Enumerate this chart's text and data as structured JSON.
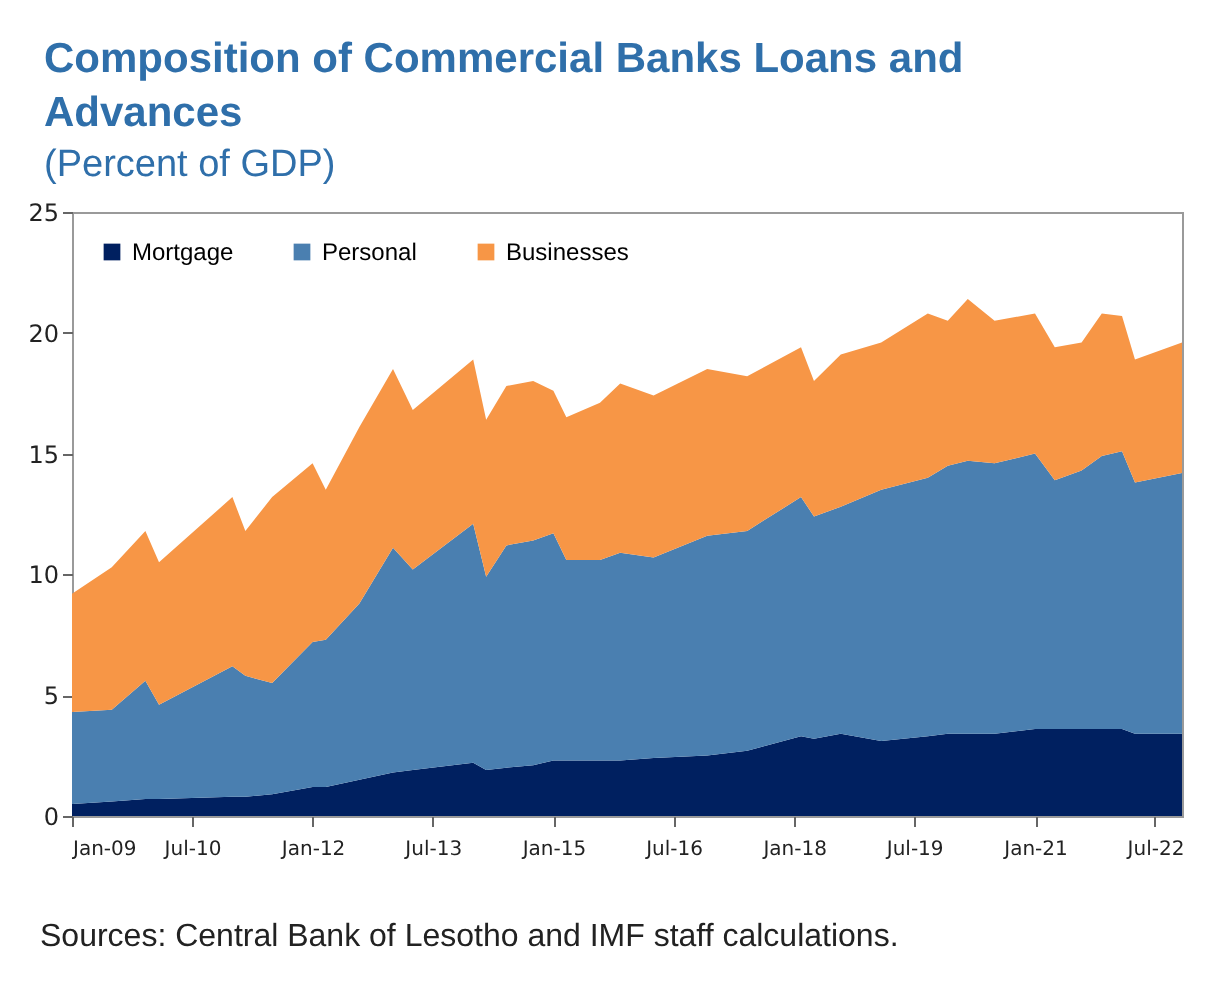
{
  "chart_data": {
    "type": "area",
    "stacked": true,
    "title": "Composition of Commercial Banks Loans and Advances",
    "subtitle": "(Percent of GDP)",
    "annotations": [
      "Sources: Central Bank of Lesotho and IMF staff calculations."
    ],
    "x": [
      "2009-01",
      "2009-07",
      "2009-12",
      "2010-02",
      "2011-01",
      "2011-03",
      "2011-07",
      "2012-01",
      "2012-03",
      "2012-08",
      "2013-01",
      "2013-04",
      "2014-01",
      "2014-03",
      "2014-06",
      "2014-10",
      "2015-01",
      "2015-03",
      "2015-08",
      "2015-11",
      "2016-04",
      "2016-12",
      "2017-06",
      "2018-02",
      "2018-04",
      "2018-08",
      "2019-02",
      "2019-09",
      "2019-12",
      "2020-03",
      "2020-07",
      "2021-01",
      "2021-04",
      "2021-08",
      "2021-11",
      "2022-02",
      "2022-04",
      "2022-11"
    ],
    "series": [
      {
        "name": "Mortgage",
        "color": "#002060",
        "values": [
          0.5,
          0.6,
          0.7,
          0.7,
          0.8,
          0.8,
          0.9,
          1.2,
          1.2,
          1.5,
          1.8,
          1.9,
          2.2,
          1.9,
          2.0,
          2.1,
          2.3,
          2.3,
          2.3,
          2.3,
          2.4,
          2.5,
          2.7,
          3.3,
          3.2,
          3.4,
          3.1,
          3.3,
          3.4,
          3.4,
          3.4,
          3.6,
          3.6,
          3.6,
          3.6,
          3.6,
          3.4,
          3.4
        ]
      },
      {
        "name": "Personal",
        "color": "#4a7fb0",
        "values": [
          3.8,
          3.8,
          4.9,
          3.9,
          5.4,
          5.0,
          4.6,
          6.0,
          6.1,
          7.3,
          9.3,
          8.3,
          9.9,
          8.0,
          9.2,
          9.3,
          9.4,
          8.3,
          8.3,
          8.6,
          8.3,
          9.1,
          9.1,
          9.9,
          9.2,
          9.4,
          10.4,
          10.7,
          11.1,
          11.3,
          11.2,
          11.4,
          10.3,
          10.7,
          11.3,
          11.5,
          10.4,
          10.8
        ]
      },
      {
        "name": "Businesses",
        "color": "#f79646",
        "values": [
          4.9,
          5.9,
          6.2,
          5.9,
          7.0,
          6.0,
          7.7,
          7.4,
          6.2,
          7.3,
          7.4,
          6.6,
          6.8,
          6.5,
          6.6,
          6.6,
          5.9,
          5.9,
          6.5,
          7.0,
          6.7,
          6.9,
          6.4,
          6.2,
          5.6,
          6.3,
          6.1,
          6.8,
          6.0,
          6.7,
          5.9,
          5.8,
          5.5,
          5.3,
          5.9,
          5.6,
          5.1,
          5.4
        ]
      }
    ],
    "xlim": [
      "2009-01",
      "2022-11"
    ],
    "xticks": [
      {
        "value": "2009-01",
        "label": "Jan-09"
      },
      {
        "value": "2010-07",
        "label": "Jul-10"
      },
      {
        "value": "2012-01",
        "label": "Jan-12"
      },
      {
        "value": "2013-07",
        "label": "Jul-13"
      },
      {
        "value": "2015-01",
        "label": "Jan-15"
      },
      {
        "value": "2016-07",
        "label": "Jul-16"
      },
      {
        "value": "2018-01",
        "label": "Jan-18"
      },
      {
        "value": "2019-07",
        "label": "Jul-19"
      },
      {
        "value": "2021-01",
        "label": "Jan-21"
      },
      {
        "value": "2022-07",
        "label": "Jul-22"
      }
    ],
    "ylim": [
      0,
      25
    ],
    "yticks": [
      0,
      5,
      10,
      15,
      20,
      25
    ],
    "grid": false,
    "legend": "top left"
  }
}
